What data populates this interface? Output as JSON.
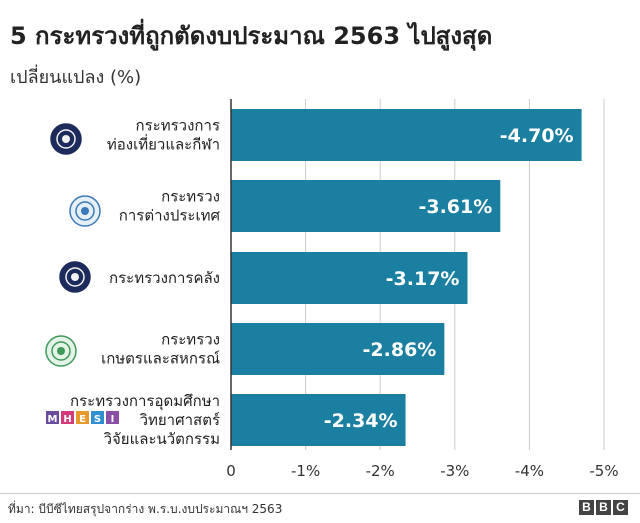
{
  "header": {
    "title": "5 กระทรวงที่ถูกตัดงบประมาณ 2563 ไปสูงสุด",
    "subtitle": "เปลี่ยนแปลง (%)"
  },
  "footer": {
    "source": "ที่มา: บีบีซีไทยสรุปจากร่าง พ.ร.บ.งบประมาณฯ 2563",
    "brand_letters": [
      "B",
      "B",
      "C"
    ]
  },
  "colors": {
    "bar": "#1a7fa0",
    "axis": "#333333",
    "grid": "#cccccc"
  },
  "chart_data": {
    "type": "bar",
    "orientation": "horizontal",
    "categories": [
      [
        "กระทรวงการ",
        "ท่องเที่ยวและกีฬา"
      ],
      [
        "กระทรวง",
        "การต่างประเทศ"
      ],
      [
        "กระทรวงการคลัง"
      ],
      [
        "กระทรวง",
        "เกษตรและสหกรณ์"
      ],
      [
        "กระทรวงการอุดมศึกษา",
        "วิทยาศาสตร์",
        "วิจัยและนวัตกรรม"
      ]
    ],
    "category_icons": [
      "tourism-sports-seal-icon",
      "foreign-affairs-seal-icon",
      "finance-seal-icon",
      "agriculture-seal-icon",
      "mhesi-logo-icon"
    ],
    "values": [
      -4.7,
      -3.61,
      -3.17,
      -2.86,
      -2.34
    ],
    "value_labels": [
      "-4.70%",
      "-3.61%",
      "-3.17%",
      "-2.86%",
      "-2.34%"
    ],
    "xlim": [
      0,
      -5
    ],
    "ticks": [
      0,
      -1,
      -2,
      -3,
      -4,
      -5
    ],
    "tick_labels": [
      "0",
      "-1%",
      "-2%",
      "-3%",
      "-4%",
      "-5%"
    ],
    "grid": true,
    "xlabel": "",
    "ylabel": ""
  }
}
